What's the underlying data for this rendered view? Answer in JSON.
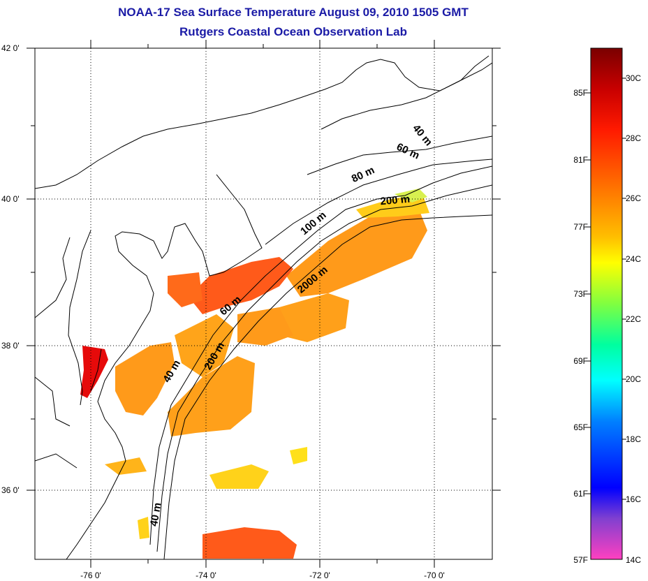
{
  "title": {
    "line1": "NOAA-17 Sea Surface Temperature August 09, 2010 1505 GMT",
    "line2": "Rutgers Coastal Ocean Observation Lab"
  },
  "map": {
    "lat_ticks": [
      "42 0'",
      "40 0'",
      "38 0'",
      "36 0'"
    ],
    "lon_ticks": [
      "-76 0'",
      "-74 0'",
      "-72 0'",
      "-70 0'"
    ],
    "contour_labels": [
      "40 m",
      "60 m",
      "80 m",
      "200 m",
      "100 m",
      "2000 m",
      "60 m",
      "200 m",
      "40 m",
      "40 m"
    ]
  },
  "colorbar": {
    "fahrenheit_labels": [
      "85F",
      "81F",
      "77F",
      "73F",
      "69F",
      "65F",
      "61F",
      "57F"
    ],
    "celsius_labels": [
      "30C",
      "28C",
      "26C",
      "24C",
      "22C",
      "20C",
      "18C",
      "16C",
      "14C"
    ],
    "colors": [
      "#8b0000",
      "#ff0000",
      "#ff7f00",
      "#ffff00",
      "#00ff7f",
      "#00ffff",
      "#0000ff",
      "#7f3fbf",
      "#ff3fbf"
    ]
  }
}
